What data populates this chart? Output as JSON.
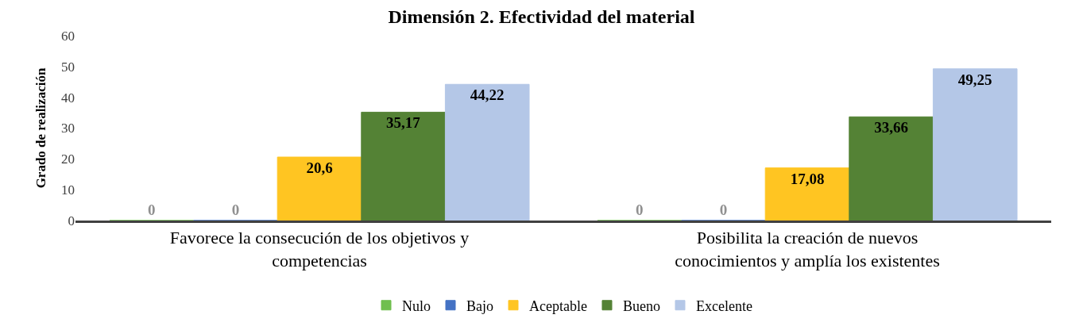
{
  "chart_data": {
    "type": "bar",
    "title": "Dimensión 2. Efectividad del material",
    "ylabel": "Grado de realización",
    "categories": [
      "Favorece la consecución de los objetivos y competencias",
      "Posibilita la creación de nuevos conocimientos y amplía los existentes"
    ],
    "series": [
      {
        "name": "Nulo",
        "color": "#70bf4f",
        "values": [
          0,
          0
        ],
        "value_labels": [
          "0",
          "0"
        ]
      },
      {
        "name": "Bajo",
        "color": "#4472c4",
        "values": [
          0,
          0
        ],
        "value_labels": [
          "0",
          "0"
        ]
      },
      {
        "name": "Aceptable",
        "color": "#ffc522",
        "values": [
          20.6,
          17.08
        ],
        "value_labels": [
          "20,6",
          "17,08"
        ]
      },
      {
        "name": "Bueno",
        "color": "#548235",
        "values": [
          35.17,
          33.66
        ],
        "value_labels": [
          "35,17",
          "33,66"
        ]
      },
      {
        "name": "Excelente",
        "color": "#b4c7e7",
        "values": [
          44.22,
          49.25
        ],
        "value_labels": [
          "44,22",
          "49,25"
        ]
      }
    ],
    "ylim": [
      0,
      60
    ],
    "yticks": [
      0,
      10,
      20,
      30,
      40,
      50,
      60
    ],
    "grid": false,
    "legend": "bottom"
  }
}
